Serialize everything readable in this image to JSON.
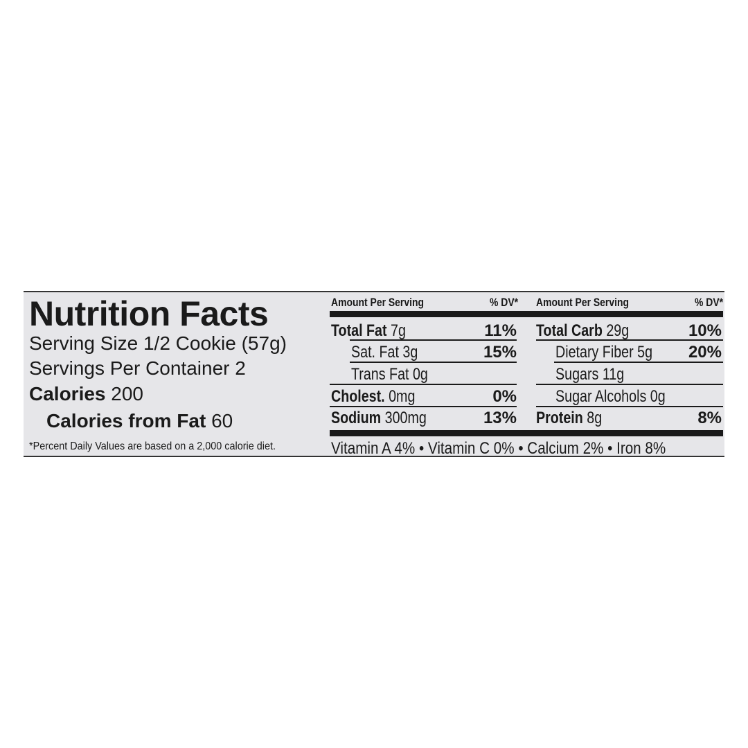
{
  "title": "Nutrition Facts",
  "serving_size": {
    "label": "Serving Size",
    "value": "1/2 Cookie (57g)"
  },
  "servings_per_container": {
    "label": "Servings Per Container",
    "value": "2"
  },
  "calories": {
    "label": "Calories",
    "value": "200"
  },
  "calories_from_fat": {
    "label": "Calories from Fat",
    "value": "60"
  },
  "footnote": "*Percent Daily Values are based on a 2,000 calorie diet.",
  "header": {
    "amount": "Amount Per Serving",
    "dv": "% DV*"
  },
  "left_rows": [
    {
      "name": "Total Fat",
      "amount": "7g",
      "dv": "11%"
    },
    {
      "name": "Sat. Fat",
      "amount": "3g",
      "dv": "15%"
    },
    {
      "name": "Trans Fat",
      "amount": "0g",
      "dv": ""
    },
    {
      "name": "Cholest.",
      "amount": "0mg",
      "dv": "0%"
    },
    {
      "name": "Sodium",
      "amount": "300mg",
      "dv": "13%"
    }
  ],
  "right_rows": [
    {
      "name": "Total Carb",
      "amount": "29g",
      "dv": "10%"
    },
    {
      "name": "Dietary Fiber",
      "amount": "5g",
      "dv": "20%"
    },
    {
      "name": "Sugars",
      "amount": "11g",
      "dv": ""
    },
    {
      "name": "Sugar Alcohols",
      "amount": "0g",
      "dv": ""
    },
    {
      "name": "Protein",
      "amount": "8g",
      "dv": "8%"
    }
  ],
  "vitamins": "Vitamin A 4% • Vitamin C 0% • Calcium 2% • Iron 8%"
}
